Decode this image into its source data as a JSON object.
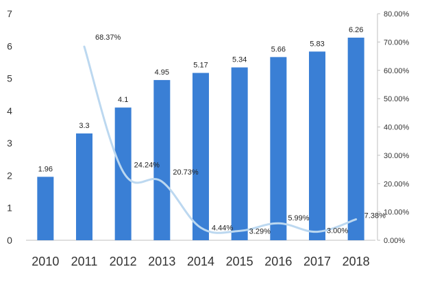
{
  "chart_data": {
    "type": "bar",
    "categories": [
      "2010",
      "2011",
      "2012",
      "2013",
      "2014",
      "2015",
      "2016",
      "2017",
      "2018"
    ],
    "series": [
      {
        "type": "bar",
        "axis": "left",
        "values": [
          1.96,
          3.3,
          4.1,
          4.95,
          5.17,
          5.34,
          5.66,
          5.83,
          6.26
        ],
        "labels": [
          "1.96",
          "3.3",
          "4.1",
          "4.95",
          "5.17",
          "5.34",
          "5.66",
          "5.83",
          "6.26"
        ]
      },
      {
        "type": "line",
        "axis": "right",
        "values": [
          null,
          68.37,
          24.24,
          20.73,
          4.44,
          3.29,
          5.99,
          3.0,
          7.38
        ],
        "labels": [
          "",
          "68.37%",
          "24.24%",
          "20.73%",
          "4.44%",
          "3.29%",
          "5.99%",
          "3.00%",
          "7.38%"
        ]
      }
    ],
    "y_left": {
      "min": 0,
      "max": 7,
      "ticks": [
        "0",
        "1",
        "2",
        "3",
        "4",
        "5",
        "6",
        "7"
      ]
    },
    "y_right": {
      "min": 0,
      "max": 80,
      "ticks": [
        "0.00%",
        "10.00%",
        "20.00%",
        "30.00%",
        "40.00%",
        "50.00%",
        "60.00%",
        "70.00%",
        "80.00%"
      ]
    },
    "grid": false,
    "legend": "none",
    "colors": {
      "bar": "#3a7fd5",
      "line": "#bcd8f0",
      "text": "#333333",
      "axis": "#bfbfbf"
    }
  }
}
